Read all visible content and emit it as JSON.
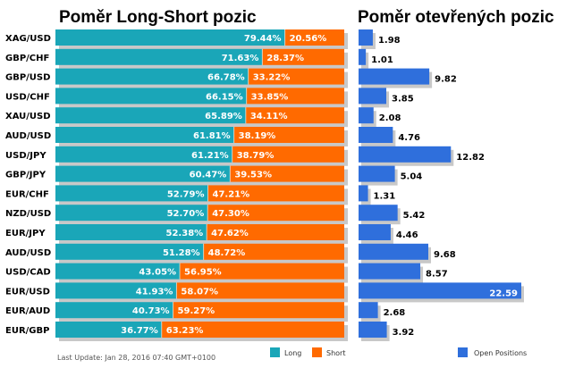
{
  "chart_data": [
    {
      "type": "bar",
      "title": "Poměr Long-Short pozic",
      "categories": [
        "XAG/USD",
        "GBP/CHF",
        "GBP/USD",
        "USD/CHF",
        "XAU/USD",
        "AUD/USD",
        "USD/JPY",
        "GBP/JPY",
        "EUR/CHF",
        "NZD/USD",
        "EUR/JPY",
        "AUD/USD",
        "USD/CAD",
        "EUR/USD",
        "EUR/AUD",
        "EUR/GBP"
      ],
      "series": [
        {
          "name": "Long",
          "color": "#1aa6b8",
          "values": [
            79.44,
            71.63,
            66.78,
            66.15,
            65.89,
            61.81,
            61.21,
            60.47,
            52.79,
            52.7,
            52.38,
            51.28,
            43.05,
            41.93,
            40.73,
            36.77
          ],
          "labels": [
            "79.44%",
            "71.63%",
            "66.78%",
            "66.15%",
            "65.89%",
            "61.81%",
            "61.21%",
            "60.47%",
            "52.79%",
            "52.70%",
            "52.38%",
            "51.28%",
            "43.05%",
            "41.93%",
            "40.73%",
            "36.77%"
          ]
        },
        {
          "name": "Short",
          "color": "#ff6a00",
          "values": [
            20.56,
            28.37,
            33.22,
            33.85,
            34.11,
            38.19,
            38.79,
            39.53,
            47.21,
            47.3,
            47.62,
            48.72,
            56.95,
            58.07,
            59.27,
            63.23
          ],
          "labels": [
            "20.56%",
            "28.37%",
            "33.22%",
            "33.85%",
            "34.11%",
            "38.19%",
            "38.79%",
            "39.53%",
            "47.21%",
            "47.30%",
            "47.62%",
            "48.72%",
            "56.95%",
            "58.07%",
            "59.27%",
            "63.23%"
          ]
        }
      ],
      "stacked": true,
      "xlim": [
        0,
        100
      ]
    },
    {
      "type": "bar",
      "title": "Poměr otevřených pozic",
      "categories": [
        "XAG/USD",
        "GBP/CHF",
        "GBP/USD",
        "USD/CHF",
        "XAU/USD",
        "AUD/USD",
        "USD/JPY",
        "GBP/JPY",
        "EUR/CHF",
        "NZD/USD",
        "EUR/JPY",
        "AUD/USD",
        "USD/CAD",
        "EUR/USD",
        "EUR/AUD",
        "EUR/GBP"
      ],
      "series": [
        {
          "name": "Open Positions",
          "color": "#2f6fdc",
          "values": [
            1.98,
            1.01,
            9.82,
            3.85,
            2.08,
            4.76,
            12.82,
            5.04,
            1.31,
            5.42,
            4.46,
            9.68,
            8.57,
            22.59,
            2.68,
            3.92
          ],
          "labels": [
            "1.98",
            "1.01",
            "9.82",
            "3.85",
            "2.08",
            "4.76",
            "12.82",
            "5.04",
            "1.31",
            "5.42",
            "4.46",
            "9.68",
            "8.57",
            "22.59",
            "2.68",
            "3.92"
          ]
        }
      ],
      "xlim": [
        0,
        22.59
      ]
    }
  ],
  "legend": {
    "long_label": "Long",
    "short_label": "Short",
    "open_label": "Open Positions",
    "long_color": "#1aa6b8",
    "short_color": "#ff6a00",
    "open_color": "#2f6fdc"
  },
  "footer": {
    "last_update": "Last Update: Jan 28, 2016 07:40 GMT+0100"
  }
}
